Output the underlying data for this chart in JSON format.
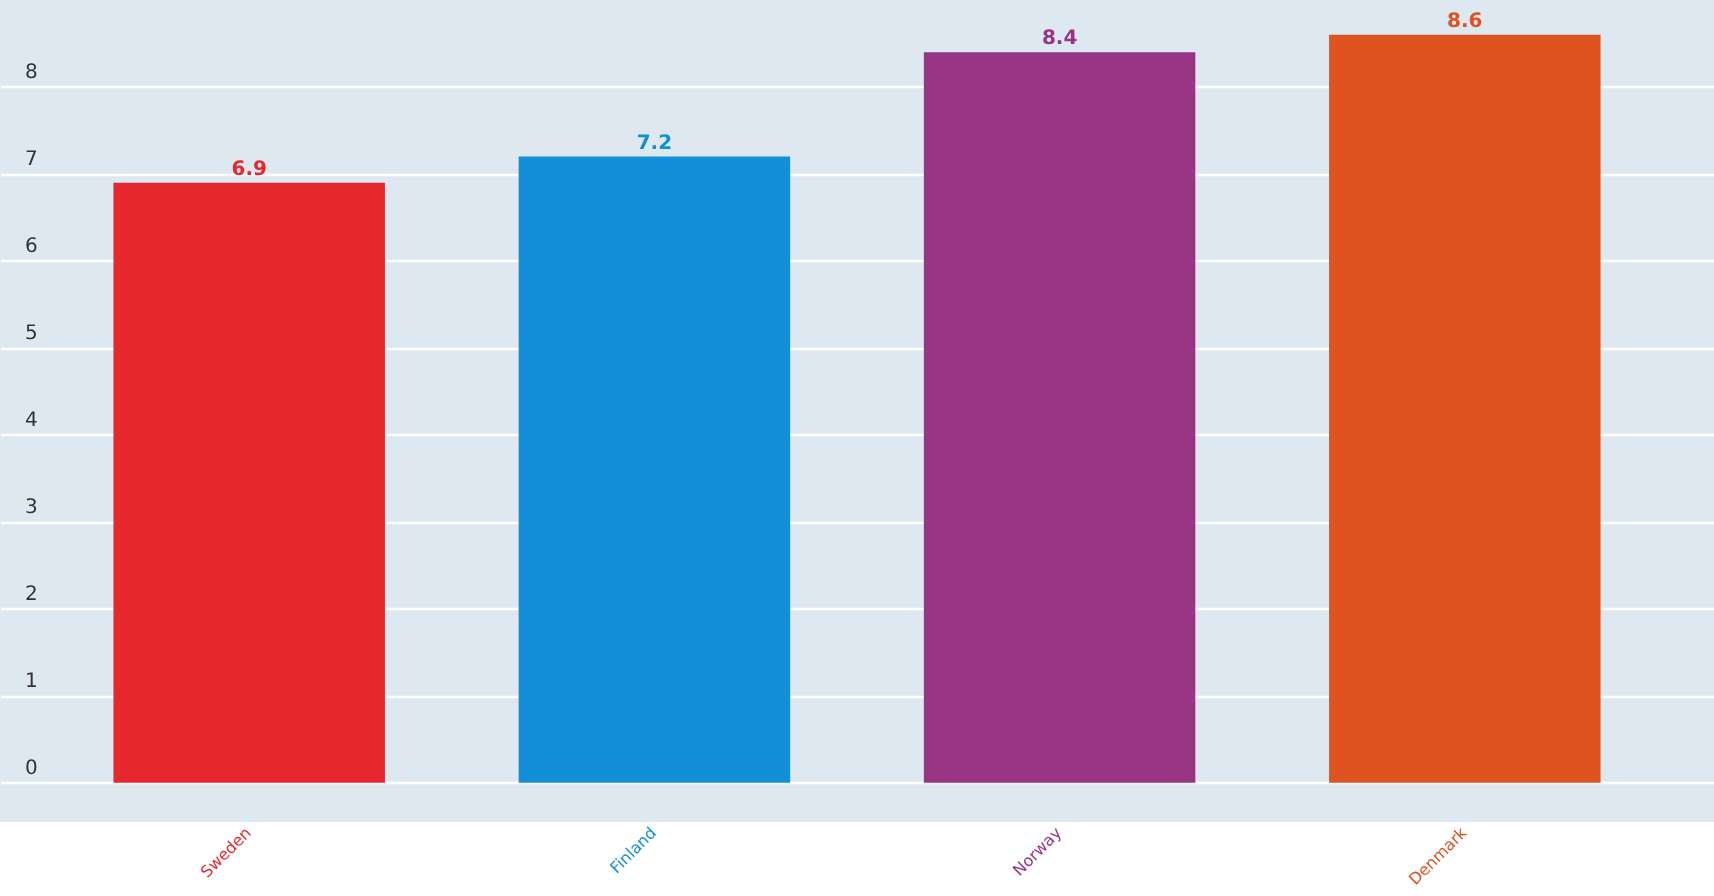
{
  "chart_data": {
    "type": "bar",
    "categories": [
      "Sweden",
      "Finland",
      "Norway",
      "Denmark"
    ],
    "values": [
      6.9,
      7.2,
      8.4,
      8.6
    ],
    "colors": [
      "#e5282e",
      "#1190d8",
      "#983585",
      "#df5320"
    ],
    "ylim": [
      -0.45,
      9
    ],
    "yticks": [
      0,
      1,
      2,
      3,
      4,
      5,
      6,
      7,
      8
    ],
    "grid": "y",
    "data_labels": true
  }
}
